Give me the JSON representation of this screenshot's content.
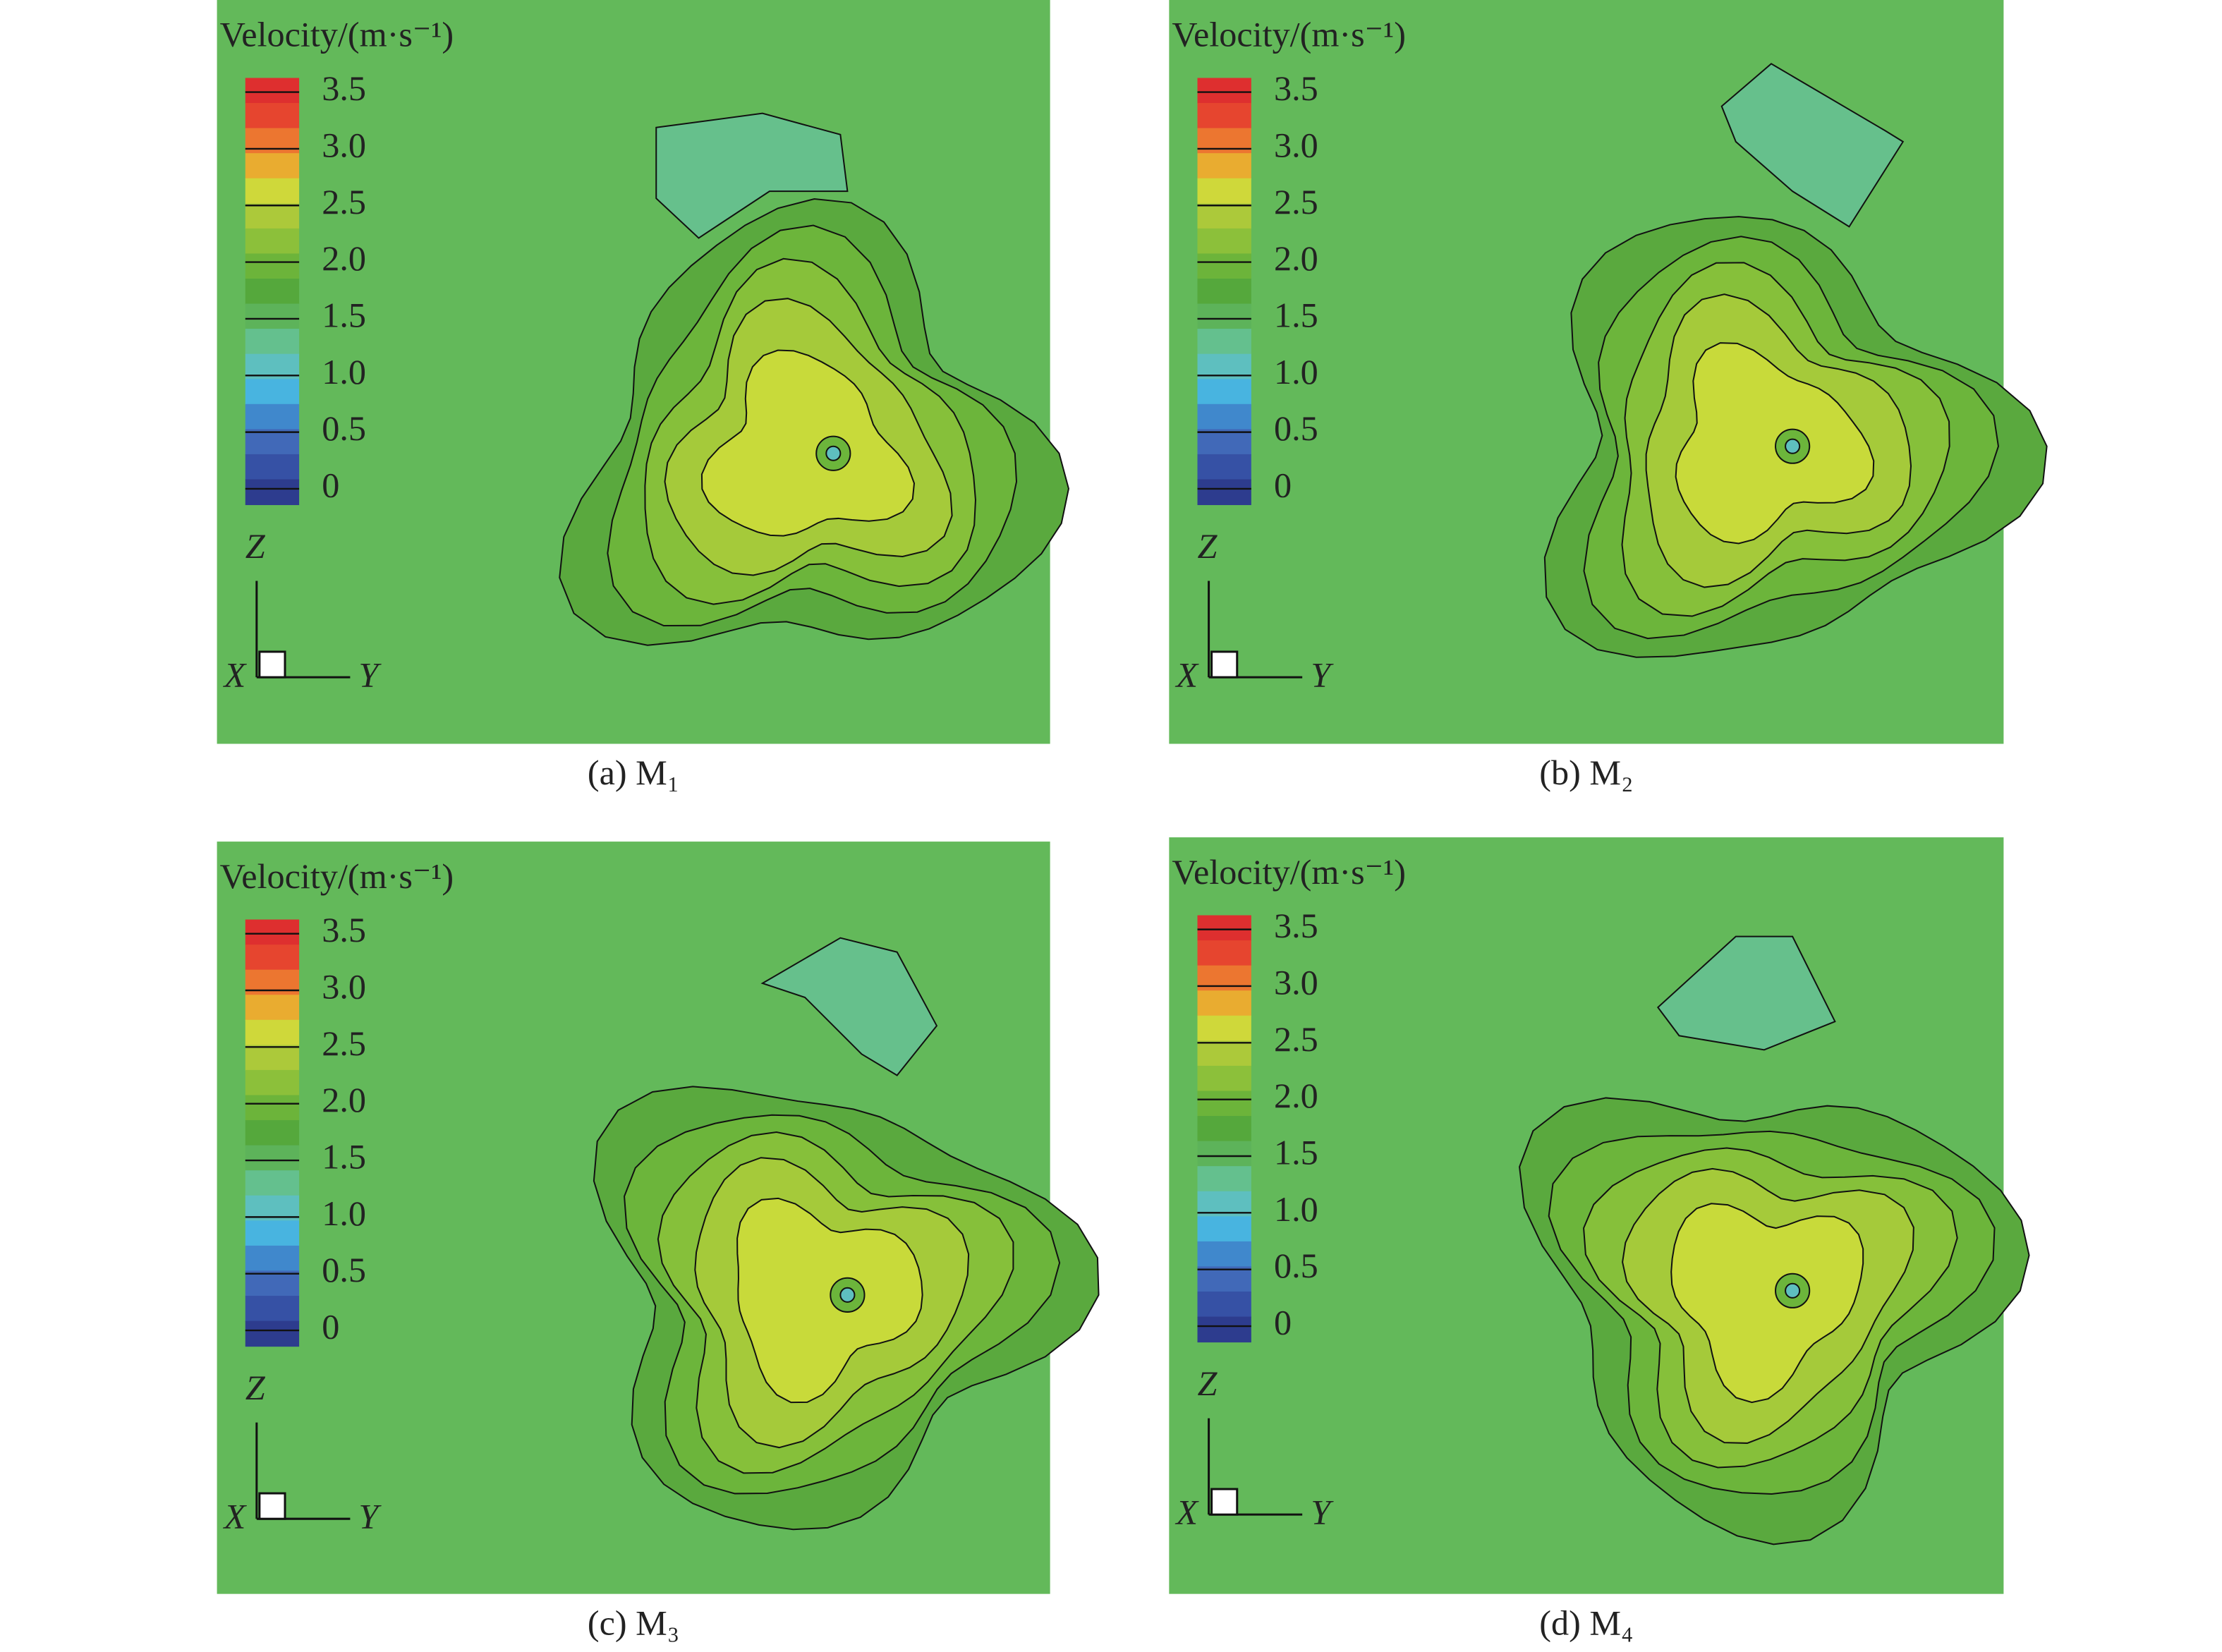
{
  "panels": [
    {
      "legend_title": "Velocity/(m·s⁻¹)",
      "legend_labels": [
        "3.5",
        "3.0",
        "2.5",
        "2.0",
        "1.5",
        "1.0",
        "0.5",
        "0"
      ],
      "axes": {
        "z": "Z",
        "x": "X",
        "y": "Y"
      },
      "caption": "(a) M₁"
    },
    {
      "legend_title": "Velocity/(m·s⁻¹)",
      "legend_labels": [
        "3.5",
        "3.0",
        "2.5",
        "2.0",
        "1.5",
        "1.0",
        "0.5",
        "0"
      ],
      "axes": {
        "z": "Z",
        "x": "X",
        "y": "Y"
      },
      "caption": "(b) M₂"
    },
    {
      "legend_title": "Velocity/(m·s⁻¹)",
      "legend_labels": [
        "3.5",
        "3.0",
        "2.5",
        "2.0",
        "1.5",
        "1.0",
        "0.5",
        "0"
      ],
      "axes": {
        "z": "Z",
        "x": "X",
        "y": "Y"
      },
      "caption": "(c) M₃"
    },
    {
      "legend_title": "Velocity/(m·s⁻¹)",
      "legend_labels": [
        "3.5",
        "3.0",
        "2.5",
        "2.0",
        "1.5",
        "1.0",
        "0.5",
        "0"
      ],
      "axes": {
        "z": "Z",
        "x": "X",
        "y": "Y"
      },
      "caption": "(d) M₄"
    }
  ]
}
